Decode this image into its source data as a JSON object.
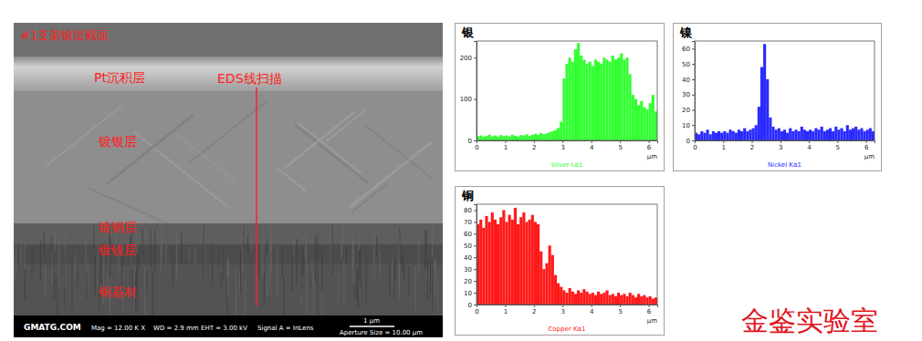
{
  "sem_image": {
    "title": "#1支架镀层截面",
    "labels": [
      "Pt沉积层",
      "EDS线扫描",
      "镀银层",
      "镀铜层",
      "镀镍层",
      "铜基材"
    ],
    "info_bar": {
      "brand": "GMATG.COM",
      "mag": "Mag = 12.00 K X",
      "wd": "WD = 2.9 mm",
      "eht": "EHT = 3.00 kV",
      "signal": "Signal A = InLens",
      "scale": "1 μm",
      "aperture": "Aperture Size = 10.00 μm"
    }
  },
  "watermark": "金鉴实验室",
  "chart_data": [
    {
      "type": "bar",
      "title": "银",
      "x_label": "μm",
      "x": [
        0,
        0.1,
        0.2,
        0.3,
        0.4,
        0.5,
        0.6,
        0.7,
        0.8,
        0.9,
        1,
        1.1,
        1.2,
        1.3,
        1.4,
        1.5,
        1.6,
        1.7,
        1.8,
        1.9,
        2,
        2.1,
        2.2,
        2.3,
        2.4,
        2.5,
        2.6,
        2.7,
        2.8,
        2.9,
        3,
        3.1,
        3.2,
        3.3,
        3.4,
        3.5,
        3.6,
        3.7,
        3.8,
        3.9,
        4,
        4.1,
        4.2,
        4.3,
        4.4,
        4.5,
        4.6,
        4.7,
        4.8,
        4.9,
        5,
        5.1,
        5.2,
        5.3,
        5.4,
        5.5,
        5.6,
        5.7,
        5.8,
        5.9,
        6,
        6.1,
        6.2
      ],
      "series": [
        {
          "name": "Silver Lα1",
          "color": "#33ff33",
          "values": [
            10,
            12,
            9,
            11,
            14,
            10,
            12,
            9,
            13,
            11,
            12,
            10,
            14,
            11,
            9,
            13,
            12,
            15,
            11,
            14,
            16,
            13,
            18,
            15,
            17,
            20,
            22,
            25,
            30,
            45,
            150,
            185,
            200,
            190,
            220,
            235,
            205,
            195,
            185,
            190,
            180,
            195,
            190,
            185,
            200,
            195,
            190,
            205,
            195,
            200,
            210,
            195,
            200,
            160,
            110,
            100,
            85,
            95,
            80,
            75,
            90,
            110,
            70
          ]
        }
      ],
      "xlim": [
        0,
        6.3
      ],
      "xticks": [
        0,
        1,
        2,
        3,
        4,
        5,
        6
      ],
      "ylim": [
        0,
        240
      ],
      "yticks": [
        0,
        100,
        200
      ]
    },
    {
      "type": "bar",
      "title": "镍",
      "x_label": "μm",
      "x": [
        0,
        0.1,
        0.2,
        0.3,
        0.4,
        0.5,
        0.6,
        0.7,
        0.8,
        0.9,
        1,
        1.1,
        1.2,
        1.3,
        1.4,
        1.5,
        1.6,
        1.7,
        1.8,
        1.9,
        2,
        2.1,
        2.2,
        2.3,
        2.4,
        2.5,
        2.6,
        2.7,
        2.8,
        2.9,
        3,
        3.1,
        3.2,
        3.3,
        3.4,
        3.5,
        3.6,
        3.7,
        3.8,
        3.9,
        4,
        4.1,
        4.2,
        4.3,
        4.4,
        4.5,
        4.6,
        4.7,
        4.8,
        4.9,
        5,
        5.1,
        5.2,
        5.3,
        5.4,
        5.5,
        5.6,
        5.7,
        5.8,
        5.9,
        6,
        6.1,
        6.2
      ],
      "series": [
        {
          "name": "Nickel Kα1",
          "color": "#2a2aff",
          "values": [
            5,
            4,
            6,
            5,
            7,
            4,
            6,
            5,
            6,
            5,
            6,
            5,
            7,
            6,
            5,
            7,
            6,
            8,
            6,
            7,
            8,
            10,
            22,
            48,
            63,
            40,
            15,
            9,
            7,
            8,
            6,
            7,
            5,
            8,
            6,
            7,
            6,
            9,
            7,
            6,
            7,
            6,
            8,
            7,
            9,
            6,
            7,
            8,
            6,
            9,
            7,
            8,
            6,
            10,
            7,
            8,
            9,
            7,
            8,
            6,
            7,
            8,
            6
          ]
        }
      ],
      "xlim": [
        0,
        6.3
      ],
      "xticks": [
        0,
        1,
        2,
        3,
        4,
        5,
        6
      ],
      "ylim": [
        0,
        65
      ],
      "yticks": [
        0,
        10,
        20,
        30,
        40,
        50,
        60
      ]
    },
    {
      "type": "bar",
      "title": "铜",
      "x_label": "μm",
      "x": [
        0,
        0.1,
        0.2,
        0.3,
        0.4,
        0.5,
        0.6,
        0.7,
        0.8,
        0.9,
        1,
        1.1,
        1.2,
        1.3,
        1.4,
        1.5,
        1.6,
        1.7,
        1.8,
        1.9,
        2,
        2.1,
        2.2,
        2.3,
        2.4,
        2.5,
        2.6,
        2.7,
        2.8,
        2.9,
        3,
        3.1,
        3.2,
        3.3,
        3.4,
        3.5,
        3.6,
        3.7,
        3.8,
        3.9,
        4,
        4.1,
        4.2,
        4.3,
        4.4,
        4.5,
        4.6,
        4.7,
        4.8,
        4.9,
        5,
        5.1,
        5.2,
        5.3,
        5.4,
        5.5,
        5.6,
        5.7,
        5.8,
        5.9,
        6,
        6.1,
        6.2
      ],
      "series": [
        {
          "name": "Copper Kα1",
          "color": "#ff1a1a",
          "values": [
            68,
            72,
            65,
            75,
            70,
            78,
            72,
            68,
            74,
            80,
            70,
            76,
            72,
            82,
            68,
            74,
            78,
            70,
            72,
            76,
            70,
            68,
            45,
            30,
            35,
            50,
            42,
            25,
            18,
            15,
            12,
            10,
            14,
            11,
            9,
            12,
            10,
            13,
            11,
            9,
            10,
            8,
            11,
            9,
            10,
            12,
            8,
            9,
            7,
            10,
            8,
            9,
            7,
            10,
            8,
            6,
            9,
            7,
            8,
            6,
            7,
            5,
            6
          ]
        }
      ],
      "xlim": [
        0,
        6.3
      ],
      "xticks": [
        0,
        1,
        2,
        3,
        4,
        5,
        6
      ],
      "ylim": [
        0,
        85
      ],
      "yticks": [
        0,
        10,
        20,
        30,
        40,
        50,
        60,
        70,
        80
      ]
    }
  ]
}
